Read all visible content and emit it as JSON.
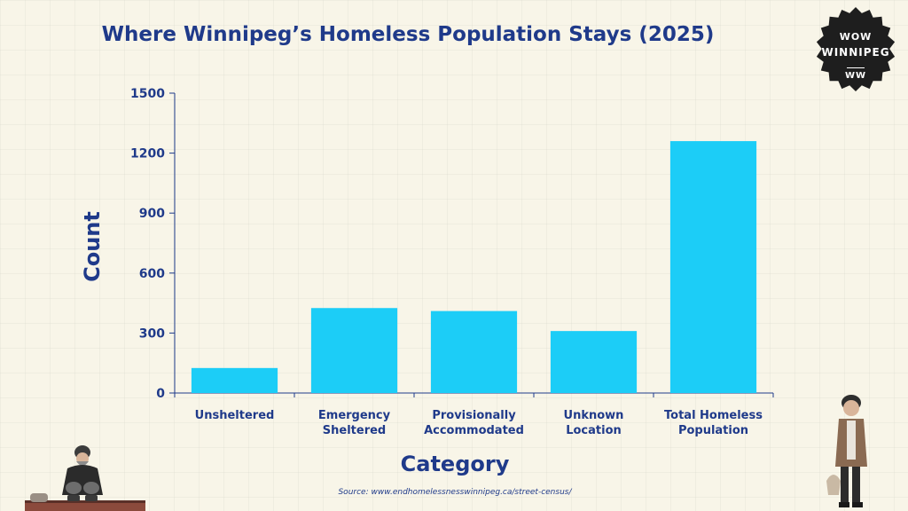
{
  "chart_data": {
    "type": "bar",
    "title": "Where Winnipeg’s Homeless Population Stays (2025)",
    "xlabel": "Category",
    "ylabel": "Count",
    "categories": [
      [
        "Unsheltered"
      ],
      [
        "Emergency",
        "Sheltered"
      ],
      [
        "Provisionally",
        "Accommodated"
      ],
      [
        "Unknown",
        "Location"
      ],
      [
        "Total Homeless",
        "Population"
      ]
    ],
    "values": [
      125,
      425,
      410,
      310,
      1260
    ],
    "ylim": [
      0,
      1500
    ],
    "yticks": [
      0,
      300,
      600,
      900,
      1200,
      1500
    ],
    "bar_color": "#1ccdf7",
    "axis_color": "#1f3a8a",
    "grid": false,
    "legend": "none"
  },
  "logo": {
    "line1": "WOW",
    "line2": "WINNIPEG",
    "line3": "WW"
  },
  "source": "Source: www.endhomelessnesswinnipeg.ca/street-census/"
}
